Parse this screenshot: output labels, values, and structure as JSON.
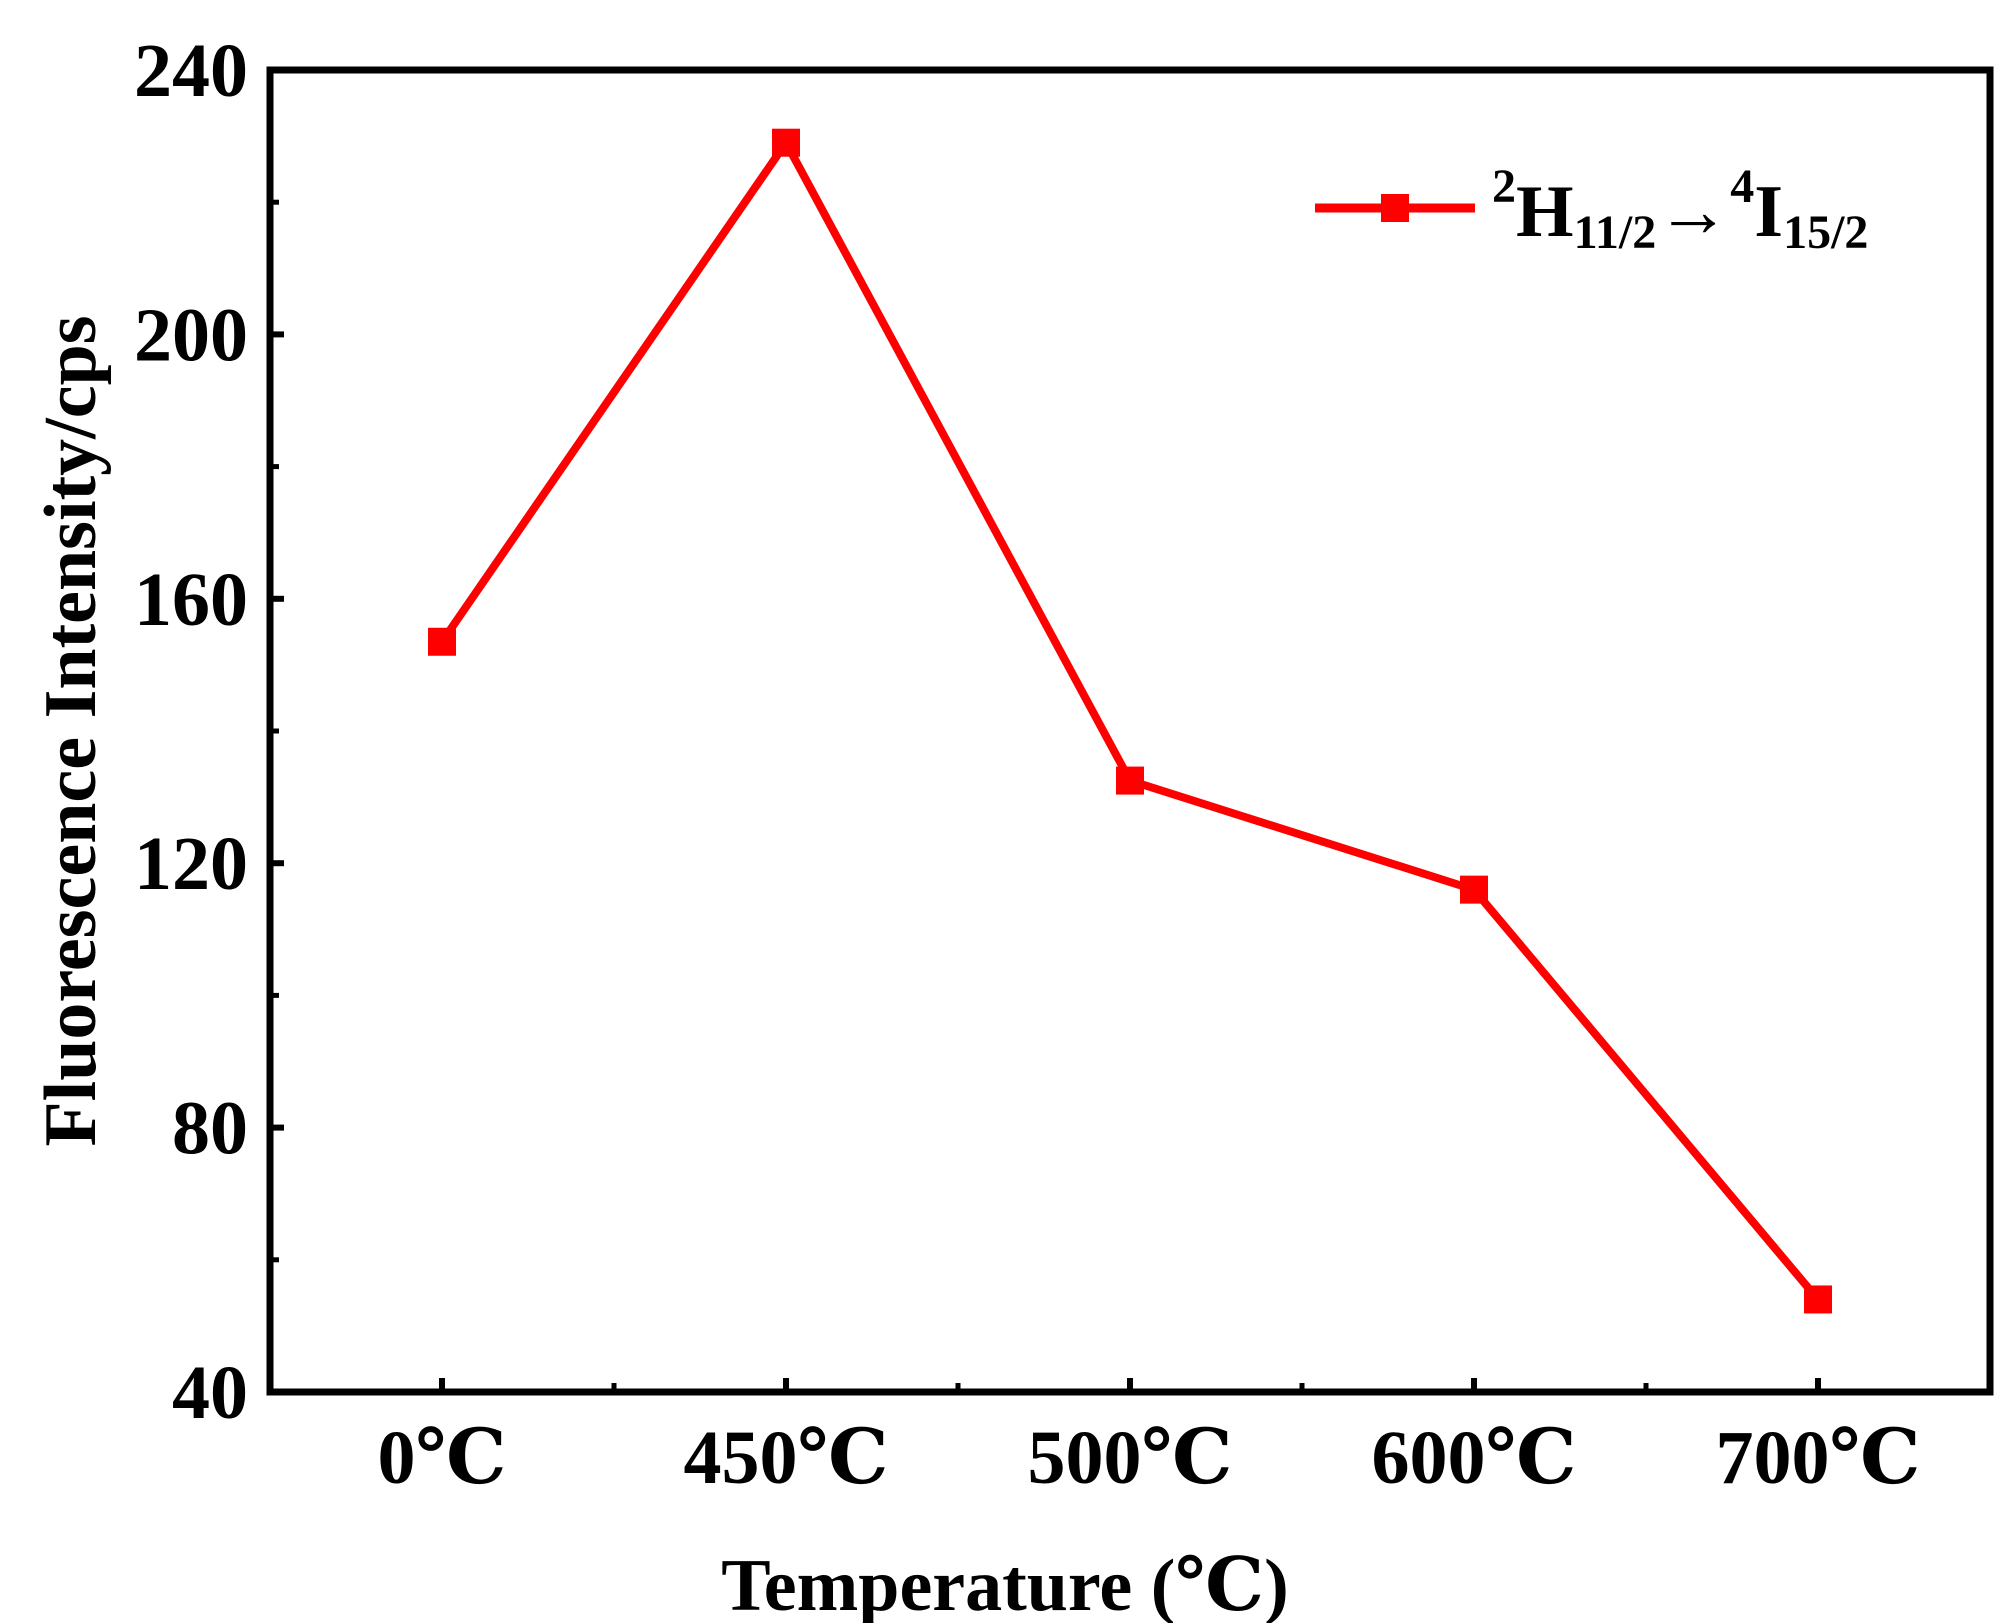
{
  "chart_data": {
    "type": "line",
    "title": "",
    "categories": [
      "0℃",
      "450℃",
      "500℃",
      "600℃",
      "700℃"
    ],
    "series": [
      {
        "name": "²H11/2→⁴I15/2",
        "values": [
          153.5,
          229,
          132.5,
          116,
          54
        ],
        "color": "#ff0000",
        "marker": "square"
      }
    ],
    "legend": {
      "position": "top-right",
      "sup1": "2",
      "main1": "H",
      "sub1": "11/2",
      "arrow": "→",
      "sup2": "4",
      "main2": "I",
      "sub2": "15/2"
    },
    "xlabel": "Temperature (℃)",
    "ylabel": "Fluorescence Intensity/cps",
    "ylim": [
      40,
      240
    ],
    "yticks": [
      "40",
      "80",
      "120",
      "160",
      "200",
      "240"
    ],
    "grid": false
  }
}
